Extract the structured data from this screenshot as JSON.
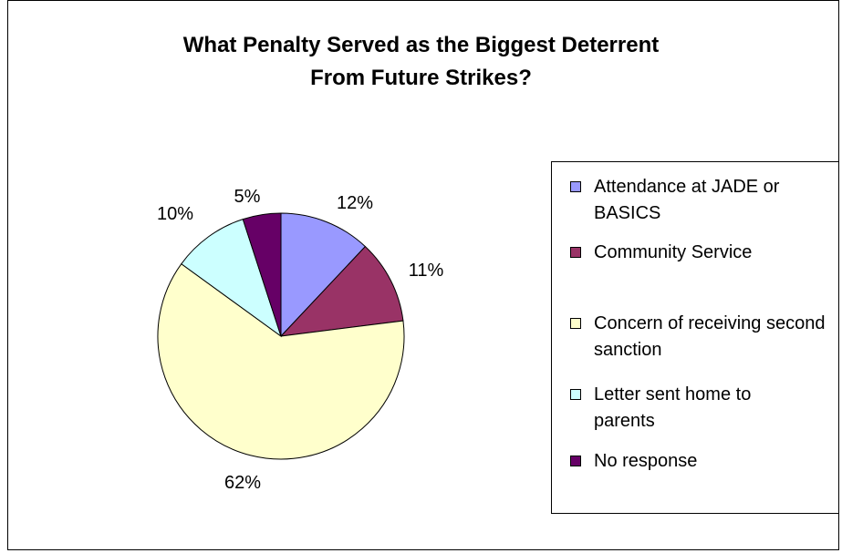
{
  "chart_data": {
    "type": "pie",
    "title_lines": [
      "What Penalty Served as the Biggest Deterrent",
      "From Future Strikes?"
    ],
    "legend_position": "right",
    "slices": [
      {
        "label": "Attendance at JADE or BASICS",
        "value": 12,
        "value_label": "12%",
        "color": "#9999ff"
      },
      {
        "label": "Community Service",
        "value": 11,
        "value_label": "11%",
        "color": "#993366"
      },
      {
        "label": "Concern of receiving second sanction",
        "value": 62,
        "value_label": "62%",
        "color": "#ffffcc"
      },
      {
        "label": "Letter sent home to parents",
        "value": 10,
        "value_label": "10%",
        "color": "#ccffff"
      },
      {
        "label": "No response",
        "value": 5,
        "value_label": "5%",
        "color": "#660066"
      }
    ]
  }
}
